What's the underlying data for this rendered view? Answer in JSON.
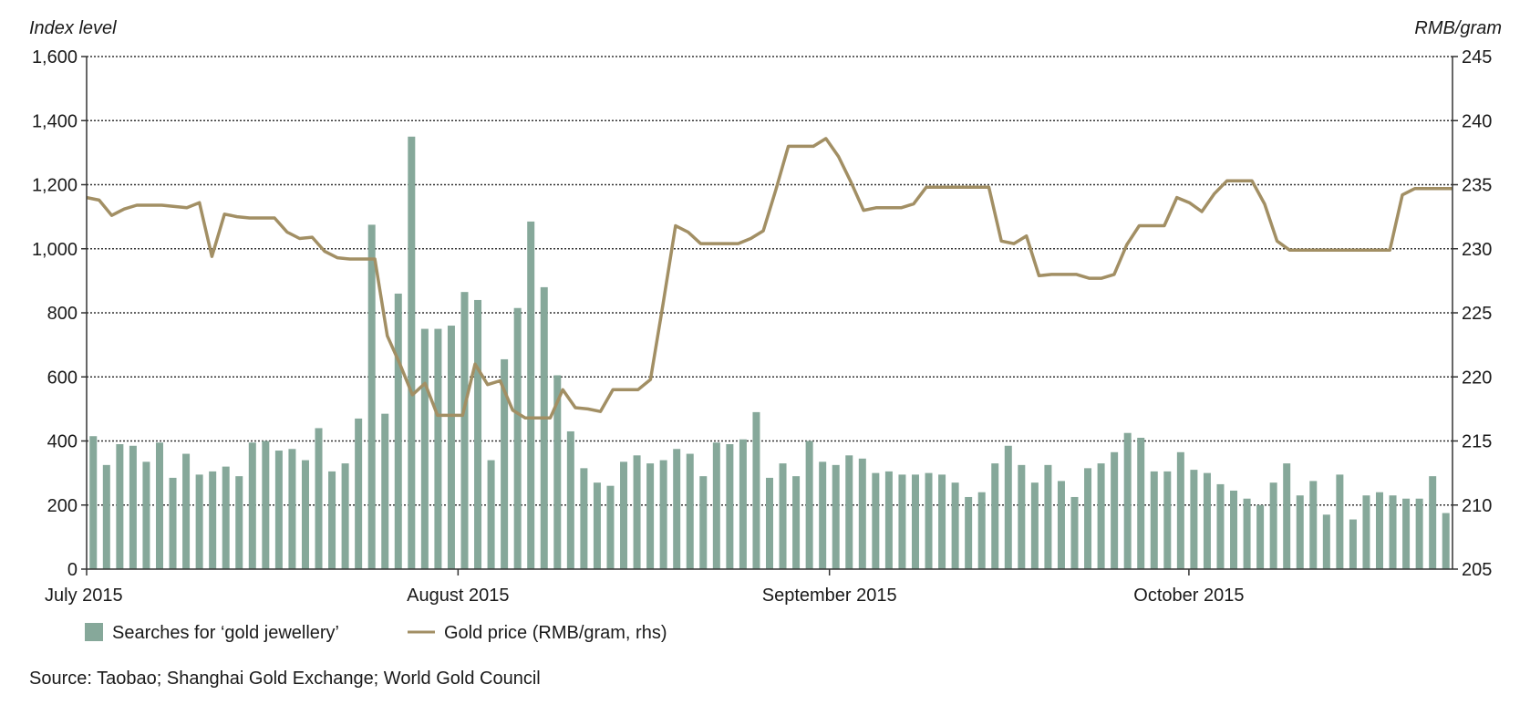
{
  "chart_data": {
    "type": "bar",
    "ylabel_left": "Index level",
    "ylabel_right": "RMB/gram",
    "y_left_range": [
      0,
      1600
    ],
    "y_left_ticks": [
      "0",
      "200",
      "400",
      "600",
      "800",
      "1,000",
      "1,200",
      "1,400",
      "1,600"
    ],
    "y_right_range": [
      205,
      245
    ],
    "y_right_ticks": [
      "205",
      "210",
      "215",
      "220",
      "225",
      "230",
      "235",
      "240",
      "245"
    ],
    "x_start": "2015-07-01",
    "x_end": "2015-10-23",
    "x_ticks": [
      {
        "label": "July 2015",
        "date": "2015-07-01"
      },
      {
        "label": "August 2015",
        "date": "2015-08-01"
      },
      {
        "label": "September 2015",
        "date": "2015-09-01"
      },
      {
        "label": "October 2015",
        "date": "2015-10-01"
      }
    ],
    "grid": "horizontal dotted",
    "legend": "bottom-left",
    "series": [
      {
        "name": "Searches for ‘gold jewellery’",
        "type": "bar",
        "axis": "left",
        "color": "#86a89a",
        "values": [
          415,
          325,
          390,
          385,
          335,
          395,
          285,
          360,
          295,
          305,
          320,
          290,
          395,
          400,
          370,
          375,
          340,
          440,
          305,
          330,
          470,
          1075,
          485,
          860,
          1350,
          750,
          750,
          760,
          865,
          840,
          340,
          655,
          815,
          1085,
          880,
          605,
          430,
          315,
          270,
          260,
          335,
          355,
          330,
          340,
          375,
          360,
          290,
          395,
          390,
          405,
          490,
          285,
          330,
          290,
          400,
          335,
          325,
          355,
          345,
          300,
          305,
          295,
          295,
          300,
          295,
          270,
          225,
          240,
          330,
          385,
          325,
          270,
          325,
          275,
          225,
          315,
          330,
          365,
          425,
          410,
          305,
          305,
          365,
          310,
          300,
          265,
          245,
          220,
          200,
          270,
          330,
          230,
          275,
          170,
          295,
          155,
          230,
          240,
          230,
          220,
          220,
          290,
          175
        ]
      },
      {
        "name": "Gold price (RMB/gram, rhs)",
        "type": "line",
        "axis": "right",
        "color": "#a28f64",
        "values": [
          234.0,
          233.8,
          232.6,
          233.1,
          233.4,
          233.4,
          233.4,
          233.3,
          233.2,
          233.6,
          229.4,
          232.7,
          232.5,
          232.4,
          232.4,
          232.4,
          231.3,
          230.8,
          230.9,
          229.8,
          229.3,
          229.2,
          229.2,
          229.2,
          223.2,
          221.0,
          218.6,
          219.5,
          217.0,
          217.0,
          217.0,
          221.0,
          219.4,
          219.7,
          217.4,
          216.8,
          216.8,
          216.8,
          219.0,
          217.6,
          217.5,
          217.3,
          219.0,
          219.0,
          219.0,
          219.8,
          225.7,
          231.8,
          231.3,
          230.4,
          230.4,
          230.4,
          230.4,
          230.8,
          231.4,
          234.6,
          238.0,
          238.0,
          238.0,
          238.6,
          237.2,
          235.2,
          233.0,
          233.2,
          233.2,
          233.2,
          233.5,
          234.8,
          234.8,
          234.8,
          234.8,
          234.8,
          234.8,
          230.6,
          230.4,
          231.0,
          227.9,
          228.0,
          228.0,
          228.0,
          227.7,
          227.7,
          228.0,
          230.3,
          231.8,
          231.8,
          231.8,
          234.0,
          233.6,
          232.9,
          234.3,
          235.3,
          235.3,
          235.3,
          233.5,
          230.6,
          229.9,
          229.9,
          229.9,
          229.9,
          229.9,
          229.9,
          229.9,
          229.9,
          229.9,
          234.2,
          234.7,
          234.7,
          234.7,
          234.7
        ]
      }
    ],
    "source": "Source: Taobao; Shanghai Gold Exchange; World Gold Council"
  }
}
